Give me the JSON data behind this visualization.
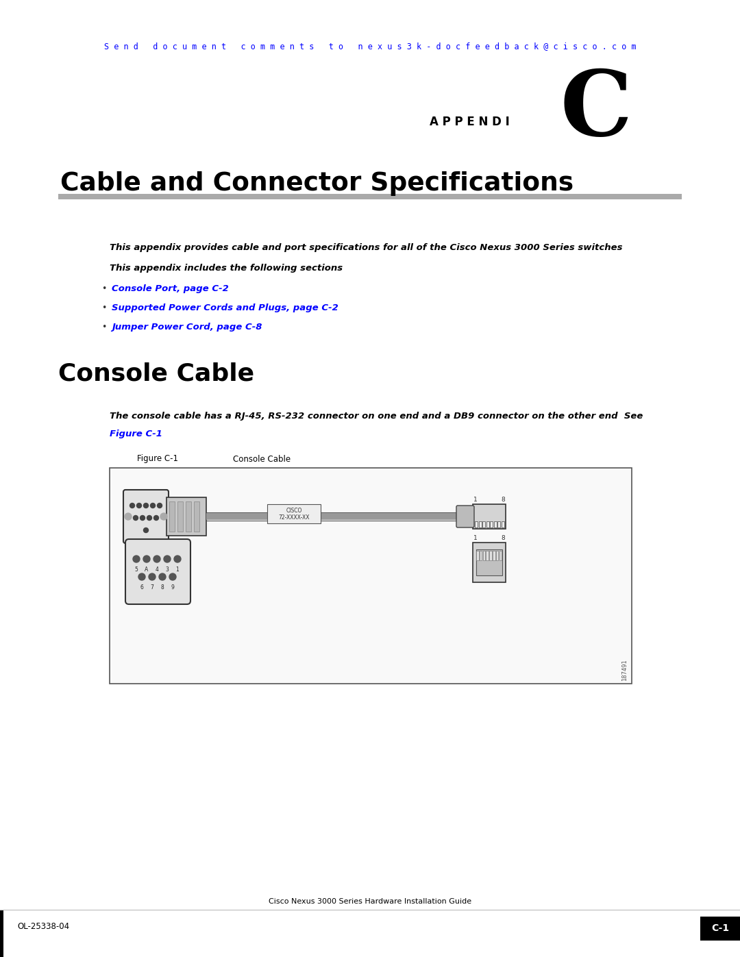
{
  "bg_color": "#ffffff",
  "header_email_text": "S e n d   d o c u m e n t   c o m m e n t s   t o   n e x u s 3 k - d o c f e e d b a c k @ c i s c o . c o m",
  "header_email_color": "#0000ff",
  "appendix_label": "A P P E N D I",
  "appendix_letter": "C",
  "chapter_title": "Cable and Connector Specifications",
  "divider_color": "#aaaaaa",
  "intro_line1": "This appendix provides cable and port specifications for all of the Cisco Nexus 3000 Series switches",
  "intro_line2": "This appendix includes the following sections",
  "bullet_items": [
    "Console Port, page C-2",
    "Supported Power Cords and Plugs, page C-2",
    "Jumper Power Cord, page C-8"
  ],
  "bullet_color": "#0000ff",
  "section_title": "Console Cable",
  "section_desc1": "The console cable has a RJ-45, RS-232 connector on one end and a DB9 connector on the other end  See",
  "section_desc2": "Figure C-1",
  "figure_label": "Figure C-1",
  "figure_caption": "Console Cable",
  "footer_left": "OL-25338-04",
  "footer_center": "Cisco Nexus 3000 Series Hardware Installation Guide",
  "footer_right": "C-1",
  "footer_bar_color": "#000000",
  "left_bar_color": "#000000",
  "cisco_label_line1": "CISCO",
  "cisco_label_line2": "72-XXXX-XX",
  "figure_watermark": "187491"
}
